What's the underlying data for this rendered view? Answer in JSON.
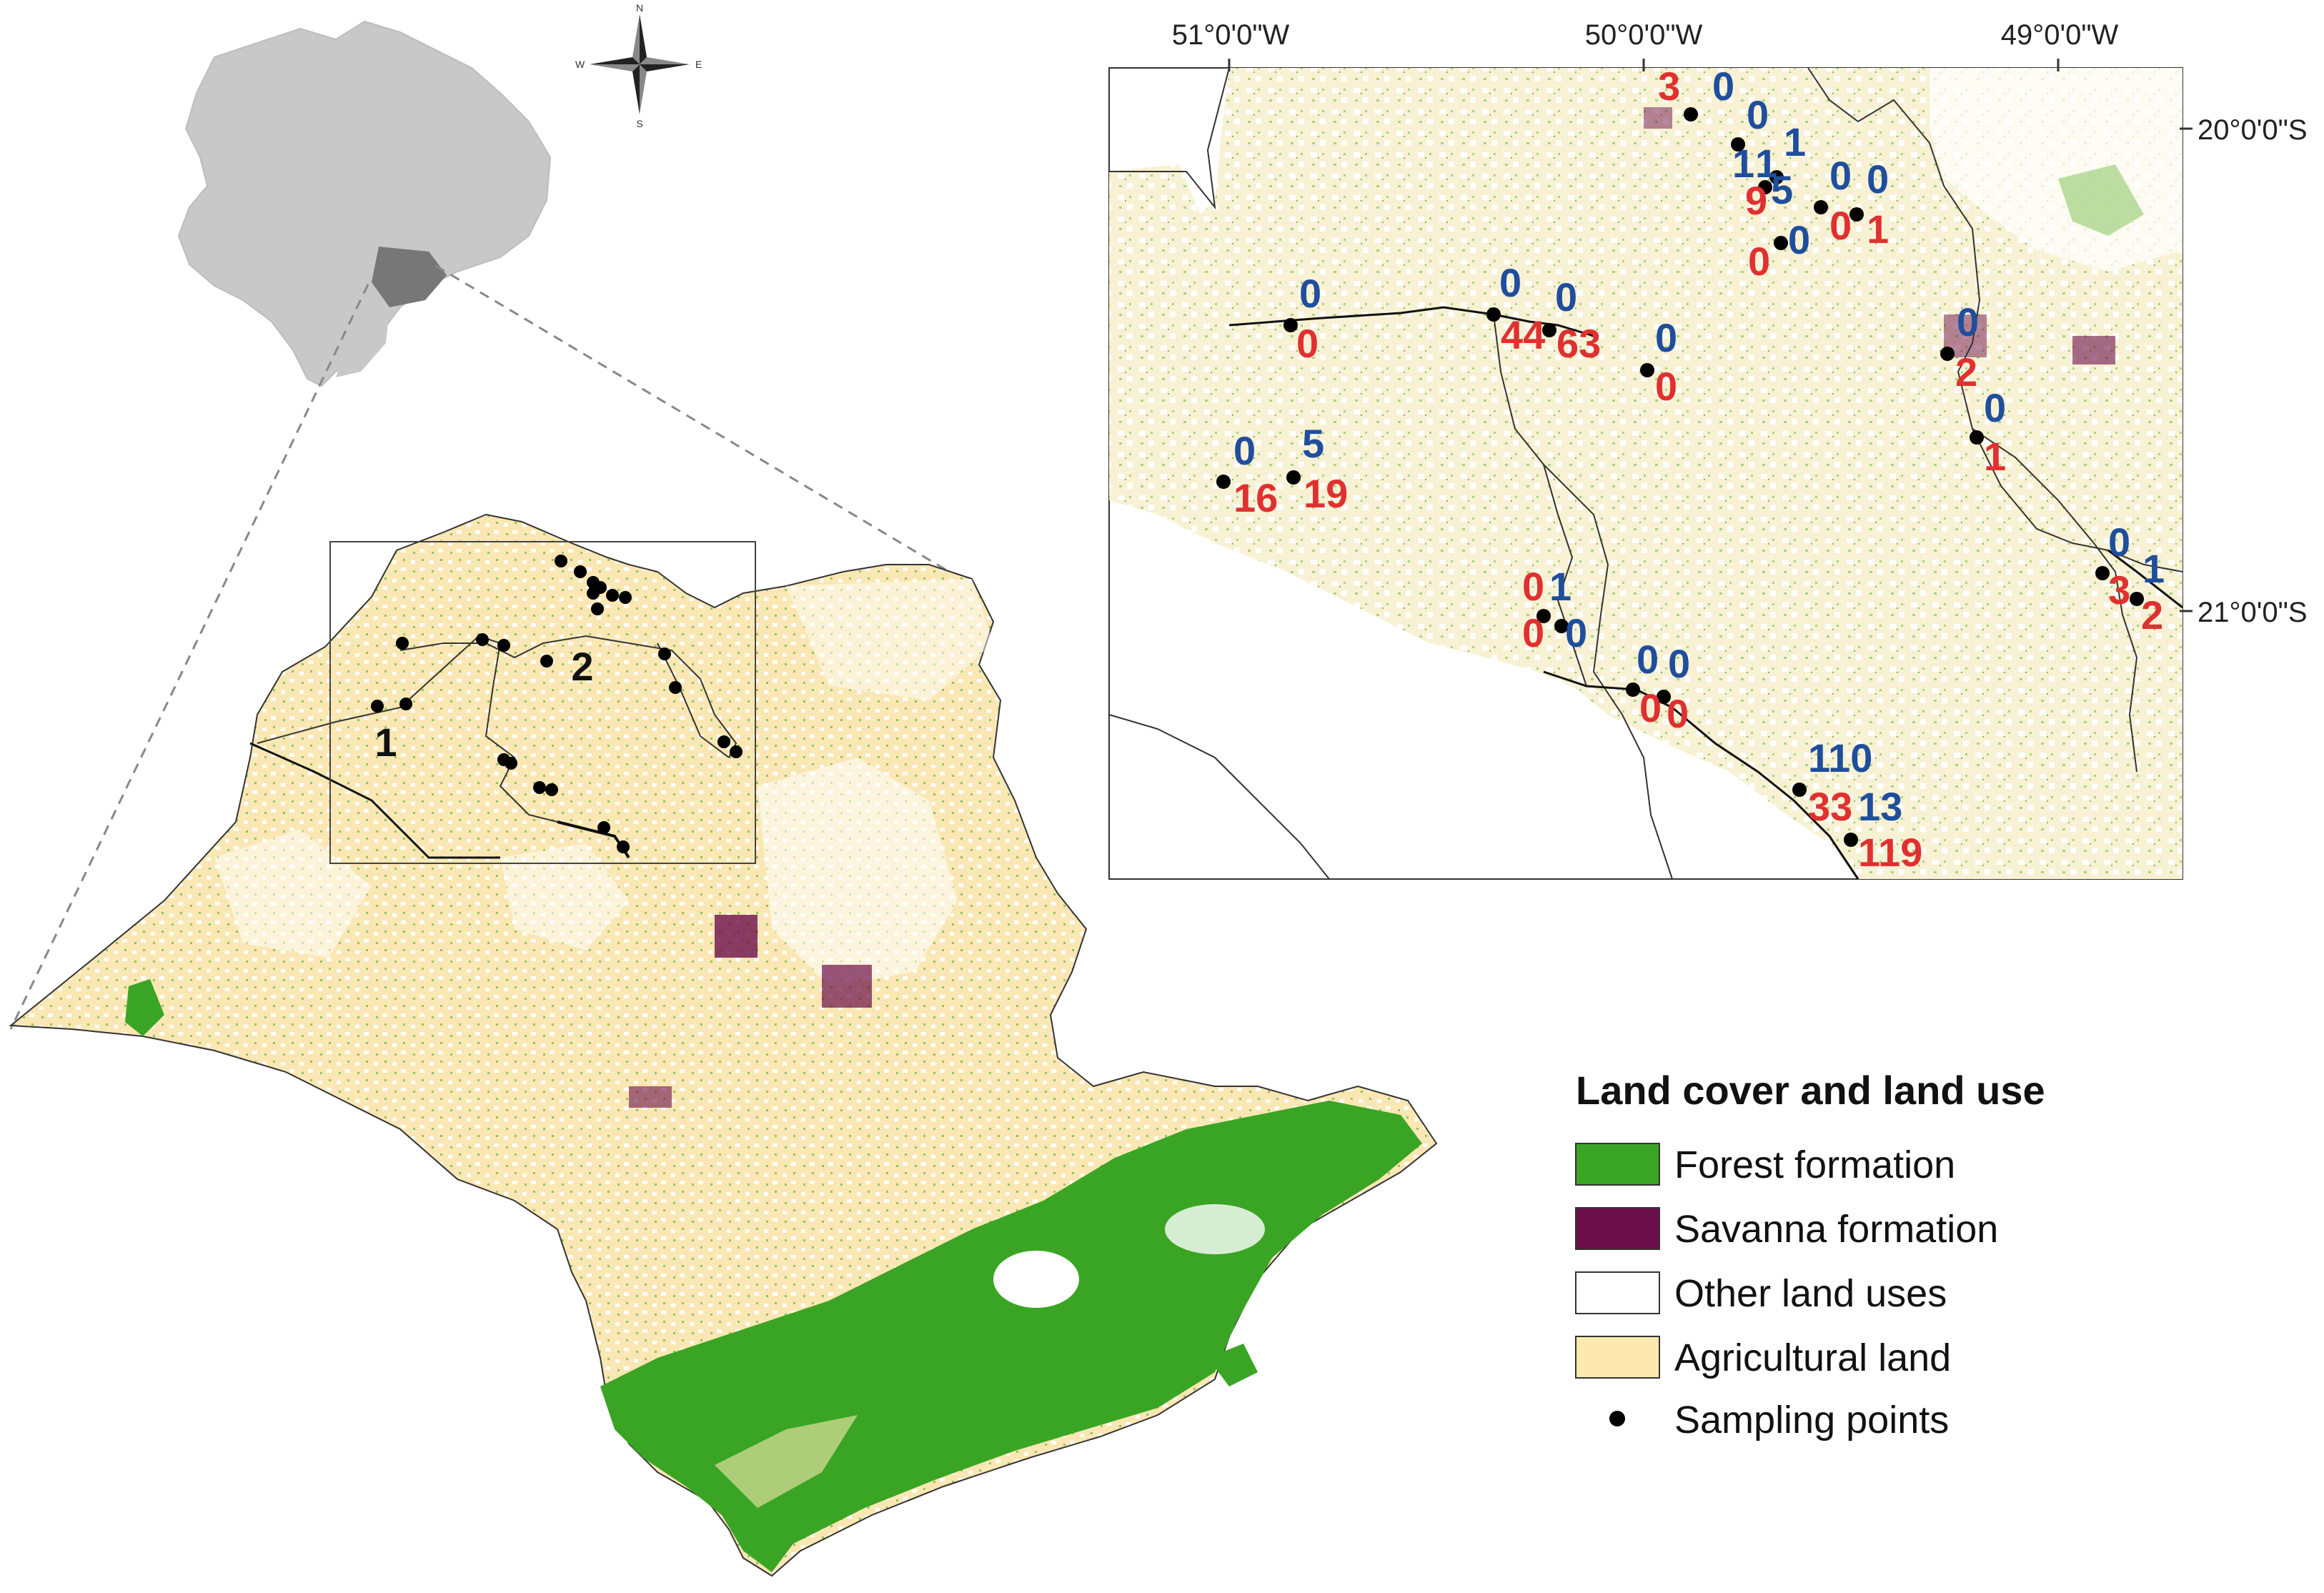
{
  "legend": {
    "title": "Land cover and land use",
    "items": [
      {
        "label": "Forest formation",
        "color": "#3aa524",
        "kind": "swatch"
      },
      {
        "label": "Savanna formation",
        "color": "#6b0f4a",
        "kind": "swatch"
      },
      {
        "label": "Other land uses",
        "color": "#ffffff",
        "kind": "swatch"
      },
      {
        "label": "Agricultural land",
        "color": "#fde9b0",
        "kind": "swatch"
      },
      {
        "label": "Sampling points",
        "color": "#000000",
        "kind": "dot"
      }
    ]
  },
  "compass": {
    "n": "N",
    "s": "S",
    "e": "E",
    "w": "W"
  },
  "inset_axes": {
    "top_ticks": [
      "51°0'0\"W",
      "50°0'0\"W",
      "49°0'0\"W"
    ],
    "right_ticks": [
      "20°0'0\"S",
      "21°0'0\"S"
    ]
  },
  "region_labels": [
    "1",
    "2"
  ],
  "sample_labels": {
    "blue": [
      "0",
      "0",
      "1",
      "1",
      "5",
      "0",
      "0",
      "0",
      "0",
      "0",
      "0",
      "0",
      "0",
      "5",
      "0",
      "1",
      "0",
      "0",
      "0",
      "1",
      "110",
      "13"
    ],
    "red": [
      "3",
      "9",
      "0",
      "1",
      "0",
      "0",
      "44",
      "63",
      "0",
      "2",
      "1",
      "16",
      "19",
      "0",
      "0",
      "3",
      "2",
      "0",
      "0",
      "33",
      "119"
    ]
  }
}
